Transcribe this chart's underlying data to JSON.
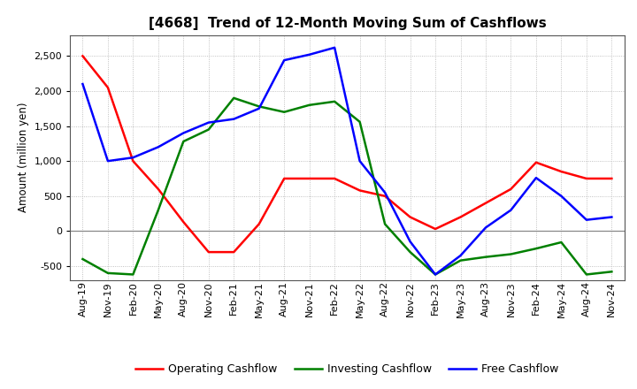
{
  "title": "[4668]  Trend of 12-Month Moving Sum of Cashflows",
  "ylabel": "Amount (million yen)",
  "categories": [
    "Aug-19",
    "Nov-19",
    "Feb-20",
    "May-20",
    "Aug-20",
    "Nov-20",
    "Feb-21",
    "May-21",
    "Aug-21",
    "Nov-21",
    "Feb-22",
    "May-22",
    "Aug-22",
    "Nov-22",
    "Feb-23",
    "May-23",
    "Aug-23",
    "Nov-23",
    "Feb-24",
    "May-24",
    "Aug-24",
    "Nov-24"
  ],
  "operating": [
    2500,
    2050,
    1000,
    600,
    130,
    -300,
    -300,
    100,
    750,
    750,
    750,
    580,
    500,
    200,
    30,
    200,
    400,
    600,
    980,
    850,
    750,
    750
  ],
  "investing": [
    -400,
    -600,
    -620,
    300,
    1280,
    1450,
    1900,
    1780,
    1700,
    1800,
    1850,
    1560,
    100,
    -300,
    -620,
    -420,
    -370,
    -330,
    -250,
    -160,
    -620,
    -580
  ],
  "free": [
    2100,
    1000,
    1050,
    1200,
    1400,
    1550,
    1600,
    1750,
    2440,
    2520,
    2620,
    1000,
    550,
    -150,
    -620,
    -350,
    50,
    300,
    760,
    500,
    160,
    200
  ],
  "operating_color": "#ff0000",
  "investing_color": "#008000",
  "free_color": "#0000ff",
  "ylim": [
    -700,
    2800
  ],
  "yticks": [
    -500,
    0,
    500,
    1000,
    1500,
    2000,
    2500
  ],
  "bg_color": "#ffffff",
  "grid_color": "#b0b0b0",
  "title_fontsize": 11,
  "label_fontsize": 8.5,
  "tick_fontsize": 8,
  "legend_fontsize": 9,
  "linewidth": 1.8
}
